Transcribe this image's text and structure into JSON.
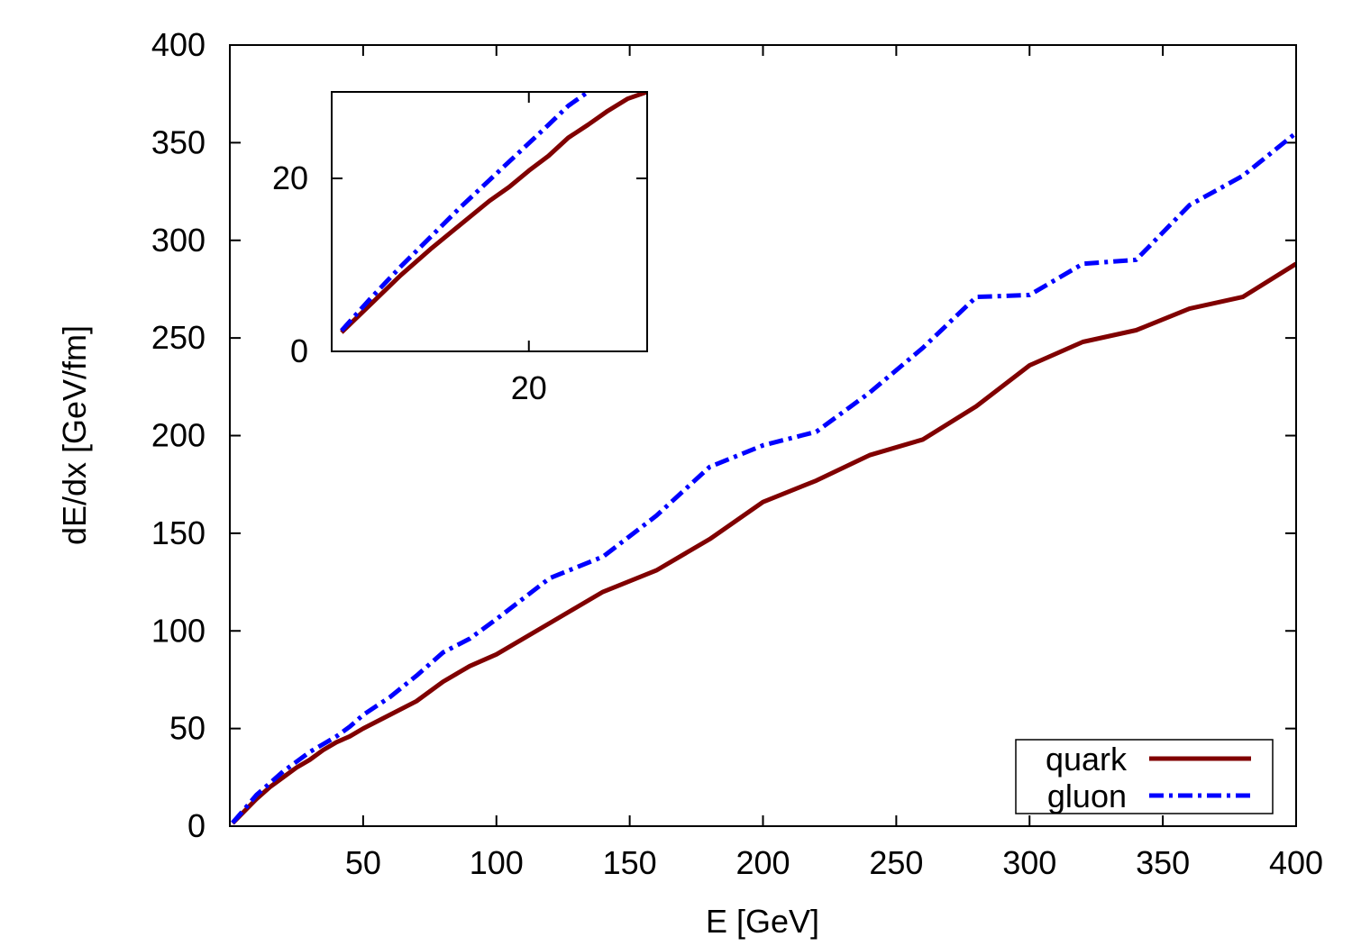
{
  "chart_data": [
    {
      "type": "line",
      "role": "main",
      "title": "",
      "xlabel": "E [GeV]",
      "ylabel": "dE/dx [GeV/fm]",
      "xlim": [
        0,
        400
      ],
      "ylim": [
        0,
        400
      ],
      "xticks": [
        50,
        100,
        150,
        200,
        250,
        300,
        350,
        400
      ],
      "yticks": [
        0,
        50,
        100,
        150,
        200,
        250,
        300,
        350,
        400
      ],
      "grid": false,
      "legend_position": "bottom-right",
      "series": [
        {
          "name": "quark",
          "color": "#800000",
          "style": "solid",
          "x": [
            1,
            5,
            10,
            15,
            20,
            25,
            30,
            35,
            40,
            45,
            50,
            60,
            70,
            80,
            90,
            100,
            120,
            140,
            160,
            180,
            200,
            220,
            240,
            260,
            280,
            300,
            320,
            340,
            360,
            380,
            400
          ],
          "y": [
            1.5,
            7,
            14,
            20,
            25,
            30,
            34,
            39,
            43,
            46,
            50,
            57,
            64,
            74,
            82,
            88,
            104,
            120,
            131,
            147,
            166,
            177,
            190,
            198,
            215,
            236,
            248,
            254,
            265,
            271,
            288
          ]
        },
        {
          "name": "gluon",
          "color": "#0000ff",
          "style": "dash-dot",
          "x": [
            1,
            5,
            10,
            15,
            20,
            25,
            30,
            35,
            40,
            45,
            50,
            60,
            70,
            80,
            90,
            100,
            120,
            140,
            160,
            180,
            200,
            220,
            240,
            260,
            280,
            300,
            320,
            340,
            360,
            380,
            400
          ],
          "y": [
            1.7,
            8,
            16,
            22,
            28,
            33,
            38,
            42,
            46,
            51,
            57,
            66,
            77,
            89,
            96,
            106,
            127,
            138,
            159,
            184,
            195,
            202,
            222,
            245,
            271,
            272,
            288,
            290,
            318,
            333,
            355
          ]
        }
      ]
    },
    {
      "type": "line",
      "role": "inset",
      "title": "",
      "xlabel": "",
      "ylabel": "",
      "xlim": [
        0,
        32
      ],
      "ylim": [
        0,
        30
      ],
      "xticks": [
        20
      ],
      "yticks": [
        0,
        20
      ],
      "grid": false,
      "series": [
        {
          "name": "quark",
          "color": "#800000",
          "style": "solid",
          "x": [
            1,
            4,
            7,
            10,
            13,
            16,
            18,
            20,
            22,
            24,
            26,
            28,
            30,
            32
          ],
          "y": [
            2.2,
            5.5,
            8.8,
            11.8,
            14.6,
            17.4,
            19.0,
            20.9,
            22.6,
            24.7,
            26.2,
            27.8,
            29.2,
            30.0
          ]
        },
        {
          "name": "gluon",
          "color": "#0000ff",
          "style": "dash-dot",
          "x": [
            1,
            4,
            7,
            10,
            13,
            16,
            19,
            22,
            24,
            26
          ],
          "y": [
            2.4,
            6.2,
            9.8,
            13.2,
            16.6,
            19.8,
            23.0,
            26.2,
            28.4,
            30.0
          ]
        }
      ]
    }
  ]
}
